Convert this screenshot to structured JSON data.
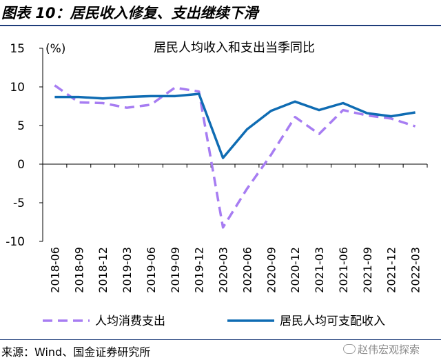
{
  "figure": {
    "title": "图表 10：居民收入修复、支出继续下滑",
    "source": "来源：Wind、国金证券研究所",
    "watermark": "赵伟宏观探索"
  },
  "chart_data": {
    "type": "line",
    "title": "居民人均收入和支出当季同比",
    "unit_label": "(%)",
    "xlabel": "",
    "ylabel": "",
    "ylim": [
      -10,
      15
    ],
    "yticks": [
      -10,
      -5,
      0,
      5,
      10,
      15
    ],
    "grid": false,
    "legend_position": "bottom",
    "categories": [
      "2018-06",
      "2018-09",
      "2018-12",
      "2019-03",
      "2019-06",
      "2019-09",
      "2019-12",
      "2020-03",
      "2020-06",
      "2020-09",
      "2020-12",
      "2021-03",
      "2021-06",
      "2021-09",
      "2021-12",
      "2022-03"
    ],
    "series": [
      {
        "name": "人均消费支出",
        "color": "#a77df2",
        "style": "dashed",
        "values": [
          10.2,
          8.0,
          7.9,
          7.3,
          7.7,
          9.9,
          9.4,
          -8.2,
          -3.2,
          1.2,
          6.1,
          3.9,
          7.0,
          6.3,
          5.9,
          4.9
        ]
      },
      {
        "name": "居民人均可支配收入",
        "color": "#0f6cb3",
        "style": "solid",
        "values": [
          8.7,
          8.7,
          8.5,
          8.7,
          8.8,
          8.8,
          9.1,
          0.8,
          4.5,
          6.9,
          8.1,
          7.0,
          7.9,
          6.6,
          6.2,
          6.7
        ]
      }
    ]
  }
}
